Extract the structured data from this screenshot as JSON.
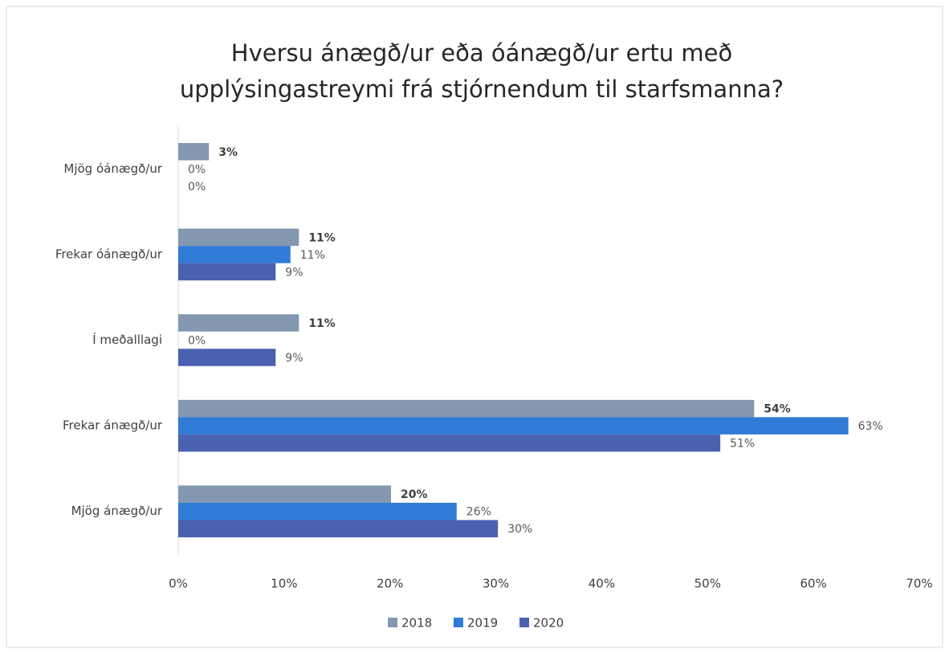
{
  "chart_data": {
    "type": "bar",
    "orientation": "horizontal",
    "title": [
      "Hversu ánægð/ur eða óánægð/ur ertu með",
      "upplýsingastreymi  frá stjórnendum til starfsmanna?"
    ],
    "categories": [
      "Mjög óánægð/ur",
      "Frekar óánægð/ur",
      "Í meðalllagi",
      "Frekar ánægð/ur",
      "Mjög ánægð/ur"
    ],
    "series": [
      {
        "name": "2018",
        "color": "#8497b0",
        "values": [
          2.9,
          11.4,
          11.4,
          54.4,
          20.1
        ],
        "value_labels": [
          "3%",
          "11%",
          "11%",
          "54%",
          "20%"
        ]
      },
      {
        "name": "2019",
        "color": "#2f7bd6",
        "values": [
          0,
          10.6,
          0,
          63.3,
          26.3
        ],
        "value_labels": [
          "0%",
          "11%",
          "0%",
          "63%",
          "26%"
        ]
      },
      {
        "name": "2020",
        "color": "#4a61b0",
        "values": [
          0,
          9.2,
          9.2,
          51.2,
          30.2
        ],
        "value_labels": [
          "0%",
          "9%",
          "9%",
          "51%",
          "30%"
        ]
      }
    ],
    "xlim": [
      0,
      70
    ],
    "xticks": [
      {
        "value": 0,
        "label": "0%"
      },
      {
        "value": 10,
        "label": "10%"
      },
      {
        "value": 20,
        "label": "20%"
      },
      {
        "value": 30,
        "label": "30%"
      },
      {
        "value": 40,
        "label": "40%"
      },
      {
        "value": 50,
        "label": "50%"
      },
      {
        "value": 60,
        "label": "60%"
      },
      {
        "value": 70,
        "label": "70%"
      }
    ],
    "legend": "bottom"
  }
}
